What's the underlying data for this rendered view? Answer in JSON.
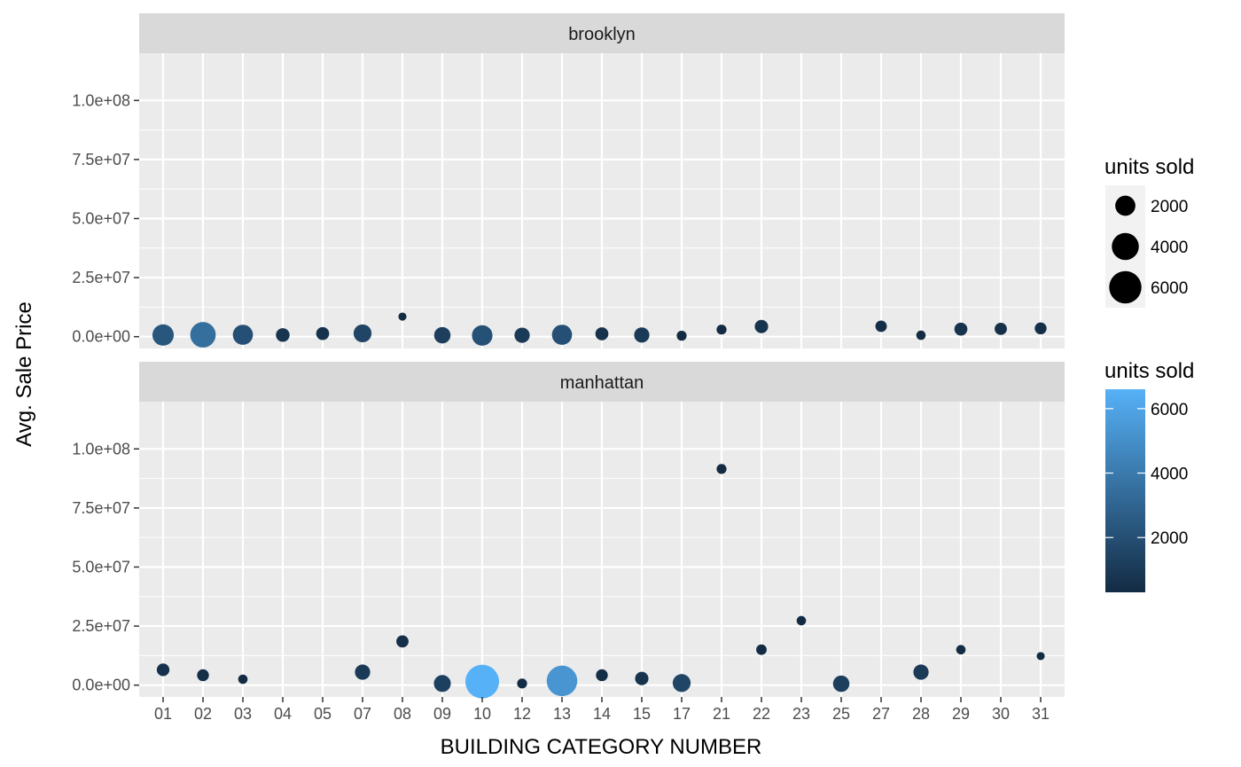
{
  "chart_data": {
    "type": "scatter",
    "xlabel": "BUILDING CATEGORY NUMBER",
    "ylabel": "Avg. Sale Price",
    "categories": [
      "01",
      "02",
      "03",
      "04",
      "05",
      "07",
      "08",
      "09",
      "10",
      "12",
      "13",
      "14",
      "15",
      "17",
      "21",
      "22",
      "23",
      "25",
      "27",
      "28",
      "29",
      "30",
      "31"
    ],
    "ylim": [
      -5000000,
      120000000
    ],
    "y_ticks": [
      0,
      25000000,
      50000000,
      75000000,
      100000000
    ],
    "y_tick_labels": [
      "0.0e+00",
      "2.5e+07",
      "5.0e+07",
      "7.5e+07",
      "1.0e+08"
    ],
    "grid": true,
    "size_legend": {
      "title": "units sold",
      "values": [
        2000,
        4000,
        6000
      ],
      "labels": [
        "2000",
        "4000",
        "6000"
      ]
    },
    "color_legend": {
      "title": "units sold",
      "range": [
        300,
        6600
      ],
      "low_color": "#132B43",
      "high_color": "#56B1F7",
      "breaks": [
        2000,
        4000,
        6000
      ],
      "labels": [
        "2000",
        "4000",
        "6000"
      ]
    },
    "facets": [
      {
        "name": "brooklyn",
        "points": [
          {
            "x": "01",
            "y": 700000,
            "units": 2300
          },
          {
            "x": "02",
            "y": 800000,
            "units": 3500
          },
          {
            "x": "03",
            "y": 800000,
            "units": 2000
          },
          {
            "x": "04",
            "y": 700000,
            "units": 750
          },
          {
            "x": "05",
            "y": 1300000,
            "units": 650
          },
          {
            "x": "07",
            "y": 1400000,
            "units": 1500
          },
          {
            "x": "08",
            "y": 8500000,
            "units": 150
          },
          {
            "x": "09",
            "y": 600000,
            "units": 1200
          },
          {
            "x": "10",
            "y": 500000,
            "units": 2100
          },
          {
            "x": "12",
            "y": 600000,
            "units": 1000
          },
          {
            "x": "13",
            "y": 800000,
            "units": 2000
          },
          {
            "x": "14",
            "y": 1200000,
            "units": 650
          },
          {
            "x": "15",
            "y": 700000,
            "units": 1000
          },
          {
            "x": "17",
            "y": 400000,
            "units": 300
          },
          {
            "x": "21",
            "y": 3000000,
            "units": 300
          },
          {
            "x": "22",
            "y": 4300000,
            "units": 700
          },
          {
            "x": "27",
            "y": 4400000,
            "units": 450
          },
          {
            "x": "28",
            "y": 600000,
            "units": 250
          },
          {
            "x": "29",
            "y": 3200000,
            "units": 650
          },
          {
            "x": "30",
            "y": 3300000,
            "units": 550
          },
          {
            "x": "31",
            "y": 3500000,
            "units": 500
          }
        ]
      },
      {
        "name": "manhattan",
        "points": [
          {
            "x": "01",
            "y": 6500000,
            "units": 600
          },
          {
            "x": "02",
            "y": 4200000,
            "units": 500
          },
          {
            "x": "03",
            "y": 2500000,
            "units": 250
          },
          {
            "x": "07",
            "y": 5500000,
            "units": 1000
          },
          {
            "x": "08",
            "y": 18500000,
            "units": 550
          },
          {
            "x": "09",
            "y": 700000,
            "units": 1300
          },
          {
            "x": "10",
            "y": 1500000,
            "units": 6600
          },
          {
            "x": "12",
            "y": 700000,
            "units": 300
          },
          {
            "x": "13",
            "y": 1800000,
            "units": 5300
          },
          {
            "x": "14",
            "y": 4200000,
            "units": 500
          },
          {
            "x": "15",
            "y": 2800000,
            "units": 700
          },
          {
            "x": "17",
            "y": 900000,
            "units": 1500
          },
          {
            "x": "21",
            "y": 91500000,
            "units": 300
          },
          {
            "x": "22",
            "y": 15000000,
            "units": 350
          },
          {
            "x": "23",
            "y": 27300000,
            "units": 250
          },
          {
            "x": "25",
            "y": 600000,
            "units": 1200
          },
          {
            "x": "28",
            "y": 5500000,
            "units": 1000
          },
          {
            "x": "29",
            "y": 15000000,
            "units": 250
          },
          {
            "x": "31",
            "y": 12300000,
            "units": 150
          }
        ]
      }
    ]
  }
}
